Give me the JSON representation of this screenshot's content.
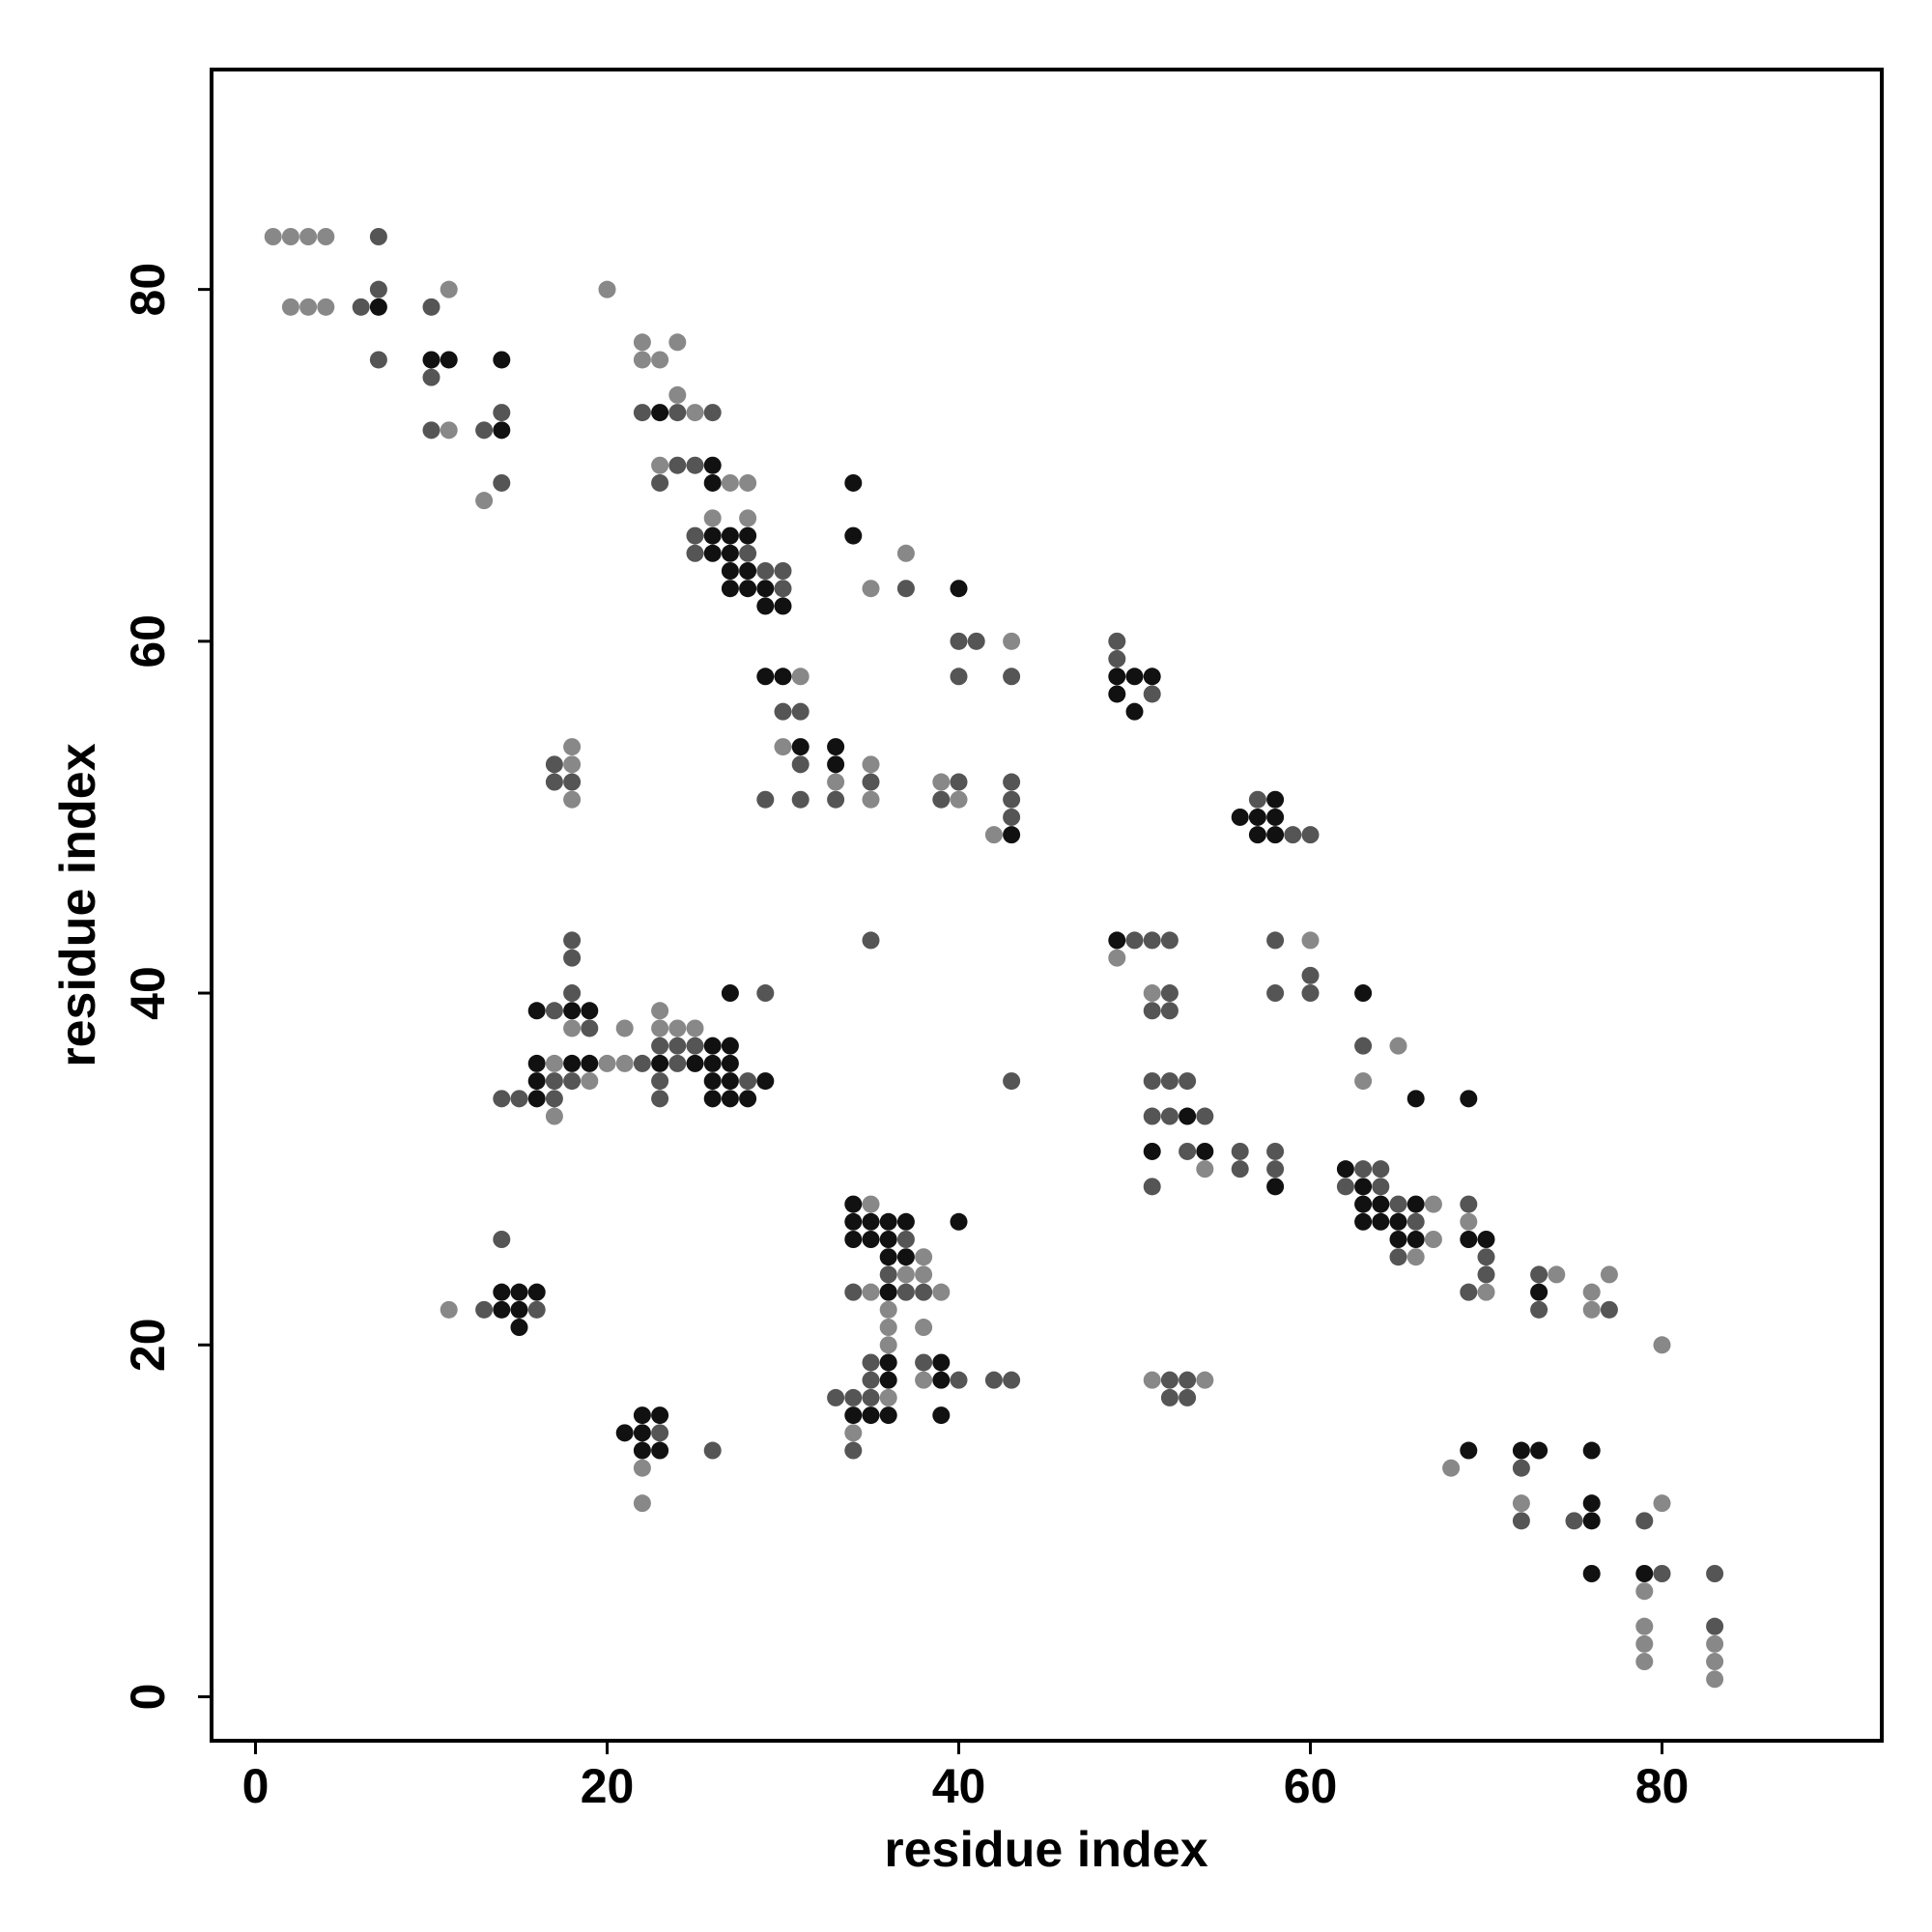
{
  "chart_data": {
    "type": "scatter",
    "x_label": "residue index",
    "y_label": "residue index",
    "xlim": [
      -2.5,
      92.5
    ],
    "ylim": [
      -2.5,
      92.5
    ],
    "xticks": [
      0,
      20,
      40,
      60,
      80
    ],
    "yticks": [
      0,
      20,
      40,
      60,
      80
    ],
    "series": [
      {
        "color": "#888888",
        "x": [
          1,
          2,
          3,
          4,
          11,
          20,
          2,
          3,
          4,
          22,
          24,
          22,
          23,
          24,
          25,
          11,
          23,
          27,
          28,
          13,
          26,
          28,
          37,
          35,
          43,
          31,
          18,
          30,
          18,
          35,
          33,
          39,
          18,
          35,
          40,
          42,
          60,
          49,
          51,
          23,
          18,
          21,
          23,
          24,
          25,
          65,
          17,
          20,
          21,
          19,
          63,
          17,
          54,
          35,
          67,
          69,
          67,
          38,
          66,
          37,
          38,
          74,
          77,
          35,
          39,
          70,
          76,
          11,
          36,
          76,
          36,
          38,
          36,
          80,
          38,
          51,
          54,
          36,
          34,
          22,
          68,
          22,
          72,
          80,
          79,
          79,
          79,
          83,
          79,
          83,
          83
        ],
        "y": [
          83,
          83,
          83,
          83,
          80,
          80,
          79,
          79,
          79,
          77,
          77,
          76,
          76,
          74,
          73,
          72,
          70,
          69,
          69,
          68,
          67,
          67,
          65,
          63,
          60,
          58,
          54,
          54,
          53,
          53,
          52,
          52,
          51,
          51,
          51,
          49,
          43,
          42,
          40,
          39,
          38,
          38,
          38,
          38,
          38,
          37,
          36,
          36,
          36,
          35,
          35,
          33,
          30,
          28,
          28,
          27,
          26,
          25,
          25,
          24,
          24,
          24,
          24,
          23,
          23,
          23,
          23,
          22,
          22,
          22,
          21,
          21,
          20,
          20,
          18,
          18,
          18,
          17,
          15,
          13,
          13,
          11,
          11,
          11,
          6,
          4,
          3,
          3,
          2,
          2,
          1
        ]
      },
      {
        "color": "#555555",
        "x": [
          7,
          7,
          6,
          10,
          7,
          10,
          14,
          22,
          24,
          26,
          10,
          13,
          24,
          25,
          14,
          23,
          25,
          25,
          28,
          29,
          30,
          30,
          37,
          40,
          41,
          49,
          49,
          40,
          43,
          51,
          30,
          31,
          17,
          31,
          17,
          18,
          35,
          40,
          43,
          29,
          31,
          33,
          39,
          43,
          57,
          43,
          59,
          60,
          18,
          35,
          50,
          51,
          52,
          58,
          18,
          60,
          18,
          29,
          52,
          58,
          60,
          17,
          51,
          52,
          19,
          23,
          24,
          25,
          63,
          22,
          24,
          17,
          18,
          23,
          28,
          43,
          51,
          52,
          53,
          14,
          15,
          17,
          23,
          51,
          52,
          54,
          53,
          56,
          58,
          56,
          58,
          63,
          64,
          51,
          62,
          64,
          65,
          69,
          66,
          14,
          37,
          65,
          70,
          36,
          70,
          73,
          34,
          37,
          38,
          69,
          13,
          16,
          73,
          77,
          35,
          38,
          35,
          40,
          42,
          43,
          52,
          53,
          33,
          34,
          35,
          52,
          53,
          23,
          26,
          34,
          72,
          72,
          75,
          79,
          80,
          83,
          83
        ],
        "y": [
          83,
          80,
          79,
          79,
          76,
          75,
          73,
          73,
          73,
          73,
          72,
          72,
          70,
          70,
          69,
          69,
          66,
          65,
          65,
          64,
          64,
          63,
          63,
          60,
          60,
          60,
          59,
          58,
          58,
          57,
          56,
          56,
          53,
          53,
          52,
          52,
          52,
          52,
          52,
          51,
          51,
          51,
          51,
          51,
          51,
          50,
          49,
          49,
          43,
          43,
          43,
          43,
          43,
          43,
          42,
          41,
          40,
          40,
          40,
          40,
          40,
          39,
          39,
          39,
          38,
          37,
          37,
          37,
          37,
          36,
          36,
          35,
          35,
          35,
          35,
          35,
          35,
          35,
          35,
          34,
          34,
          34,
          34,
          33,
          33,
          33,
          31,
          31,
          31,
          30,
          30,
          30,
          30,
          29,
          29,
          29,
          28,
          28,
          27,
          26,
          26,
          25,
          25,
          24,
          24,
          24,
          23,
          23,
          23,
          23,
          22,
          22,
          22,
          22,
          19,
          19,
          18,
          18,
          18,
          18,
          18,
          18,
          17,
          17,
          17,
          17,
          17,
          15,
          14,
          14,
          13,
          10,
          10,
          10,
          7,
          7,
          4
        ]
      },
      {
        "color": "#111111",
        "x": [
          7,
          10,
          11,
          14,
          23,
          14,
          26,
          26,
          34,
          26,
          27,
          28,
          34,
          26,
          27,
          27,
          28,
          27,
          28,
          29,
          40,
          29,
          30,
          29,
          30,
          49,
          50,
          51,
          49,
          50,
          31,
          33,
          33,
          58,
          56,
          57,
          58,
          43,
          57,
          58,
          49,
          27,
          63,
          16,
          18,
          19,
          26,
          27,
          16,
          18,
          19,
          23,
          25,
          26,
          27,
          16,
          26,
          27,
          29,
          16,
          26,
          27,
          28,
          66,
          69,
          53,
          51,
          54,
          62,
          58,
          63,
          34,
          63,
          64,
          66,
          34,
          35,
          36,
          37,
          40,
          63,
          64,
          65,
          34,
          35,
          36,
          65,
          66,
          69,
          70,
          36,
          37,
          14,
          15,
          16,
          36,
          73,
          14,
          15,
          15,
          36,
          39,
          36,
          39,
          22,
          23,
          34,
          35,
          36,
          39,
          21,
          22,
          22,
          23,
          69,
          72,
          73,
          76,
          76,
          76,
          76,
          79
        ],
        "y": [
          79,
          76,
          76,
          76,
          73,
          72,
          70,
          69,
          69,
          66,
          66,
          66,
          66,
          65,
          65,
          64,
          64,
          63,
          63,
          63,
          63,
          62,
          62,
          58,
          58,
          58,
          58,
          58,
          57,
          56,
          54,
          54,
          53,
          51,
          50,
          50,
          50,
          49,
          49,
          49,
          43,
          40,
          40,
          39,
          39,
          39,
          37,
          37,
          36,
          36,
          36,
          36,
          36,
          36,
          36,
          35,
          35,
          35,
          35,
          34,
          34,
          34,
          34,
          34,
          34,
          33,
          31,
          31,
          30,
          29,
          29,
          28,
          28,
          28,
          28,
          27,
          27,
          27,
          27,
          27,
          27,
          27,
          27,
          26,
          26,
          26,
          26,
          26,
          26,
          26,
          25,
          25,
          23,
          23,
          23,
          23,
          23,
          22,
          22,
          21,
          19,
          19,
          18,
          18,
          16,
          16,
          16,
          16,
          16,
          16,
          15,
          15,
          14,
          14,
          14,
          14,
          14,
          14,
          11,
          10,
          7,
          7
        ]
      }
    ]
  }
}
